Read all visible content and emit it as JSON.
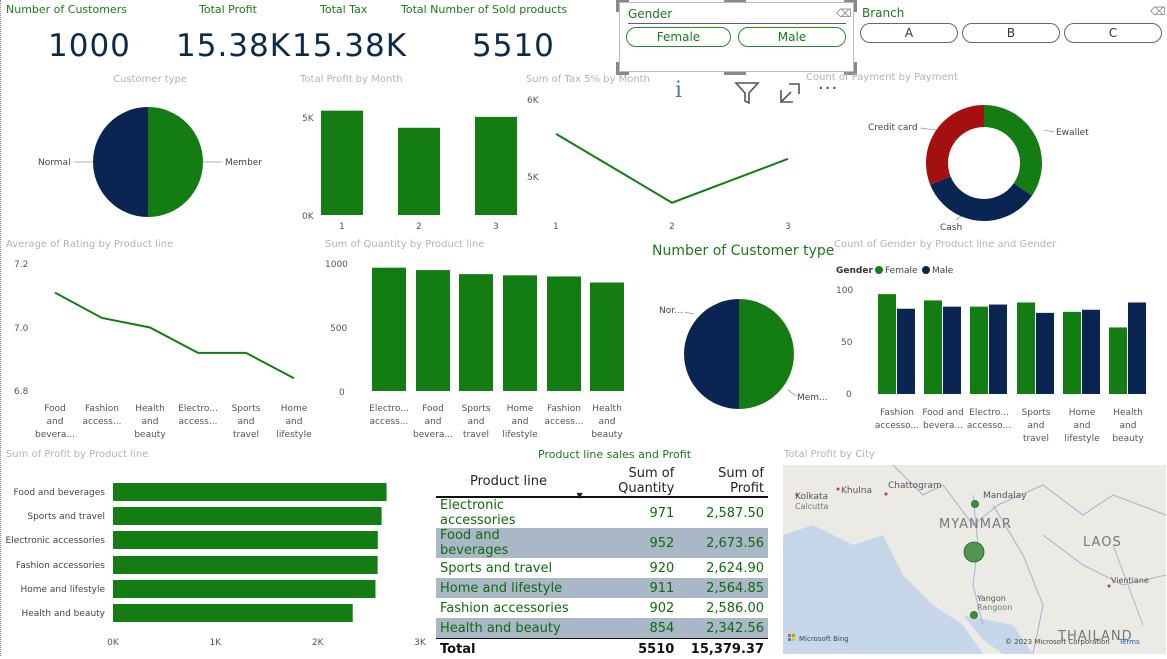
{
  "kpis": [
    {
      "title": "Number of Customers",
      "value": "1000"
    },
    {
      "title": "Total Profit",
      "value": "15.38K"
    },
    {
      "title": "Total Tax",
      "value": "15.38K"
    },
    {
      "title": "Total Number of Sold products",
      "value": "5510"
    }
  ],
  "gender_slicer": {
    "title": "Gender",
    "options": [
      "Female",
      "Male"
    ]
  },
  "branch_slicer": {
    "title": "Branch",
    "options": [
      "A",
      "B",
      "C"
    ]
  },
  "visual_toolbar": {
    "icons": [
      "info-icon",
      "filter-icon",
      "focus-mode-icon",
      "more-options-icon"
    ],
    "info_glyph": "i",
    "more_glyph": "···"
  },
  "colors": {
    "green": "#137d13",
    "navy": "#0b2553",
    "red": "#a40f0f"
  },
  "customer_type": {
    "title": "Customer type",
    "labels": [
      "Normal",
      "Member"
    ]
  },
  "profit_by_month": {
    "title": "Total Profit by Month",
    "yticks": [
      "5K",
      "0K"
    ],
    "xticks": [
      "1",
      "2",
      "3"
    ]
  },
  "tax_by_month": {
    "title": "Sum of Tax 5% by Month",
    "yticks": [
      "6K",
      "5K"
    ],
    "xticks": [
      "1",
      "2",
      "3"
    ]
  },
  "payment": {
    "title": "Count of Payment by Payment",
    "labels": [
      "Credit card",
      "Ewallet",
      "Cash"
    ]
  },
  "rating": {
    "title": "Average of Rating by Product line",
    "yticks": [
      "7.2",
      "7.0",
      "6.8"
    ],
    "xlabels": [
      [
        "Food",
        "and",
        "bevera..."
      ],
      [
        "Fashion",
        "access..."
      ],
      [
        "Health",
        "and",
        "beauty"
      ],
      [
        "Electro...",
        "access..."
      ],
      [
        "Sports",
        "and",
        "travel"
      ],
      [
        "Home",
        "and",
        "lifestyle"
      ]
    ]
  },
  "quantity": {
    "title": "Sum of Quantity by Product line",
    "yticks": [
      "1000",
      "500",
      "0"
    ],
    "xlabels": [
      [
        "Electro...",
        "access..."
      ],
      [
        "Food",
        "and",
        "bevera..."
      ],
      [
        "Sports",
        "and",
        "travel"
      ],
      [
        "Home",
        "and",
        "lifestyle"
      ],
      [
        "Fashion",
        "access..."
      ],
      [
        "Health",
        "and",
        "beauty"
      ]
    ]
  },
  "customer_type2": {
    "title": "Number of Customer type",
    "labels": [
      "Nor...",
      "Mem..."
    ]
  },
  "gender_product": {
    "title": "Count of Gender by Product line and Gender",
    "legend_title": "Gender",
    "legend": [
      "Female",
      "Male"
    ],
    "yticks": [
      "100",
      "50",
      "0"
    ],
    "xlabels": [
      [
        "Fashion",
        "accesso..."
      ],
      [
        "Food and",
        "bevera..."
      ],
      [
        "Electro...",
        "accesso..."
      ],
      [
        "Sports",
        "and",
        "travel"
      ],
      [
        "Home",
        "and",
        "lifestyle"
      ],
      [
        "Health",
        "and",
        "beauty"
      ]
    ]
  },
  "profit_product": {
    "title": "Sum of Profit by Product line",
    "xticks": [
      "0K",
      "1K",
      "2K",
      "3K"
    ],
    "labels": [
      "Food and beverages",
      "Sports and travel",
      "Electronic accessories",
      "Fashion accessories",
      "Home and lifestyle",
      "Health and beauty"
    ]
  },
  "matrix": {
    "title": "Product line sales and Profit",
    "headers": [
      "Product line",
      "Sum of Quantity",
      "Sum of Profit"
    ],
    "rows": [
      [
        "Electronic accessories",
        "971",
        "2,587.50"
      ],
      [
        "Food and beverages",
        "952",
        "2,673.56"
      ],
      [
        "Sports and travel",
        "920",
        "2,624.90"
      ],
      [
        "Home and lifestyle",
        "911",
        "2,564.85"
      ],
      [
        "Fashion accessories",
        "902",
        "2,586.00"
      ],
      [
        "Health and beauty",
        "854",
        "2,342.56"
      ]
    ],
    "total": [
      "Total",
      "5510",
      "15,379.37"
    ]
  },
  "map": {
    "title": "Total Profit by City",
    "places": [
      "Kolkata",
      "Calcutta",
      "Khulna",
      "Chattogram",
      "Mandalay",
      "MYANMAR",
      "LAOS",
      "Vientiane",
      "Yangon",
      "Rangoon",
      "THAILAND"
    ],
    "attribution": "© 2023 Microsoft Corporation",
    "terms": "Terms",
    "bing": "Microsoft Bing"
  },
  "chart_data": [
    {
      "type": "pie",
      "title": "Customer type",
      "categories": [
        "Normal",
        "Member"
      ],
      "values": [
        499,
        501
      ]
    },
    {
      "type": "bar",
      "title": "Total Profit by Month",
      "categories": [
        "1",
        "2",
        "3"
      ],
      "values": [
        5.54,
        4.63,
        5.21
      ],
      "ylim": [
        0,
        6
      ]
    },
    {
      "type": "line",
      "title": "Sum of Tax 5% by Month",
      "categories": [
        "1",
        "2",
        "3"
      ],
      "values": [
        5.54,
        4.63,
        5.21
      ],
      "ylim": [
        4.6,
        6
      ]
    },
    {
      "type": "pie",
      "title": "Count of Payment by Payment",
      "categories": [
        "Ewallet",
        "Cash",
        "Credit card"
      ],
      "values": [
        345,
        344,
        311
      ]
    },
    {
      "type": "line",
      "title": "Average of Rating by Product line",
      "categories": [
        "Food and beverages",
        "Fashion accessories",
        "Health and beauty",
        "Electronic accessories",
        "Sports and travel",
        "Home and lifestyle"
      ],
      "values": [
        7.11,
        7.03,
        7.0,
        6.92,
        6.92,
        6.84
      ],
      "ylim": [
        6.8,
        7.2
      ]
    },
    {
      "type": "bar",
      "title": "Sum of Quantity by Product line",
      "categories": [
        "Electronic accessories",
        "Food and beverages",
        "Sports and travel",
        "Home and lifestyle",
        "Fashion accessories",
        "Health and beauty"
      ],
      "values": [
        971,
        952,
        920,
        911,
        902,
        854
      ],
      "ylim": [
        0,
        1000
      ]
    },
    {
      "type": "pie",
      "title": "Number of Customer type",
      "categories": [
        "Normal",
        "Member"
      ],
      "values": [
        499,
        501
      ]
    },
    {
      "type": "bar",
      "title": "Count of Gender by Product line and Gender",
      "categories": [
        "Fashion accessories",
        "Food and beverages",
        "Electronic accessories",
        "Sports and travel",
        "Home and lifestyle",
        "Health and beauty"
      ],
      "series": [
        {
          "name": "Female",
          "values": [
            96,
            90,
            84,
            88,
            79,
            64
          ]
        },
        {
          "name": "Male",
          "values": [
            82,
            84,
            86,
            78,
            81,
            88
          ]
        }
      ],
      "ylim": [
        0,
        100
      ]
    },
    {
      "type": "bar",
      "title": "Sum of Profit by Product line",
      "categories": [
        "Food and beverages",
        "Sports and travel",
        "Electronic accessories",
        "Fashion accessories",
        "Home and lifestyle",
        "Health and beauty"
      ],
      "values": [
        2673.56,
        2624.9,
        2587.5,
        2586.0,
        2564.85,
        2342.56
      ],
      "xlim": [
        0,
        3000
      ]
    }
  ]
}
